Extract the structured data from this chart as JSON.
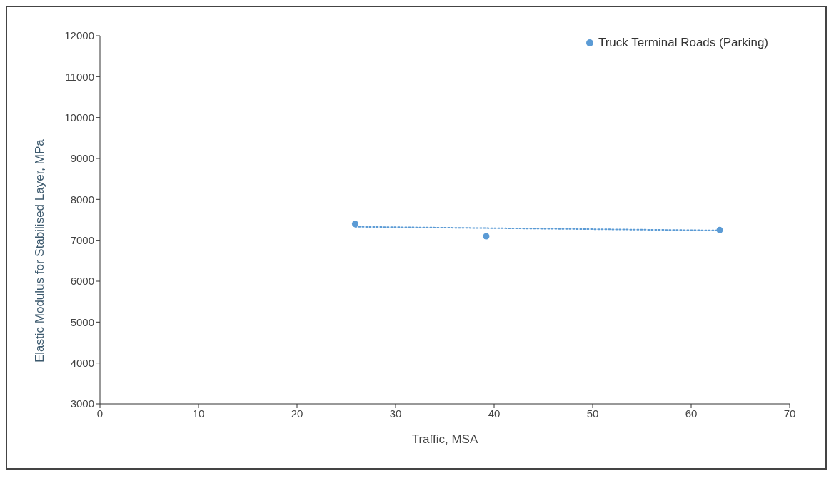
{
  "chart_data": {
    "type": "scatter",
    "xlabel": "Traffic, MSA",
    "ylabel": "Elastic Modulus for Stabilised Layer, MPa",
    "series": [
      {
        "name": "Truck Terminal Roads (Parking)",
        "color": "#5b9bd5",
        "x": [
          25.9,
          39.2,
          62.9
        ],
        "values": [
          7400,
          7100,
          7250
        ],
        "marker": "circle"
      },
      {
        "type": "line",
        "color": "#5b9bd5",
        "x": [
          25.9,
          62.9
        ],
        "values": [
          7330,
          7240
        ],
        "line_style": "dotted",
        "marker": "none"
      }
    ],
    "xlim": [
      0,
      70
    ],
    "xticks": [
      0,
      10,
      20,
      30,
      40,
      50,
      60,
      70
    ],
    "ylim": [
      3000,
      12000
    ],
    "yticks": [
      3000,
      4000,
      5000,
      6000,
      7000,
      8000,
      9000,
      10000,
      11000,
      12000
    ],
    "grid": false,
    "legend": "top right"
  }
}
